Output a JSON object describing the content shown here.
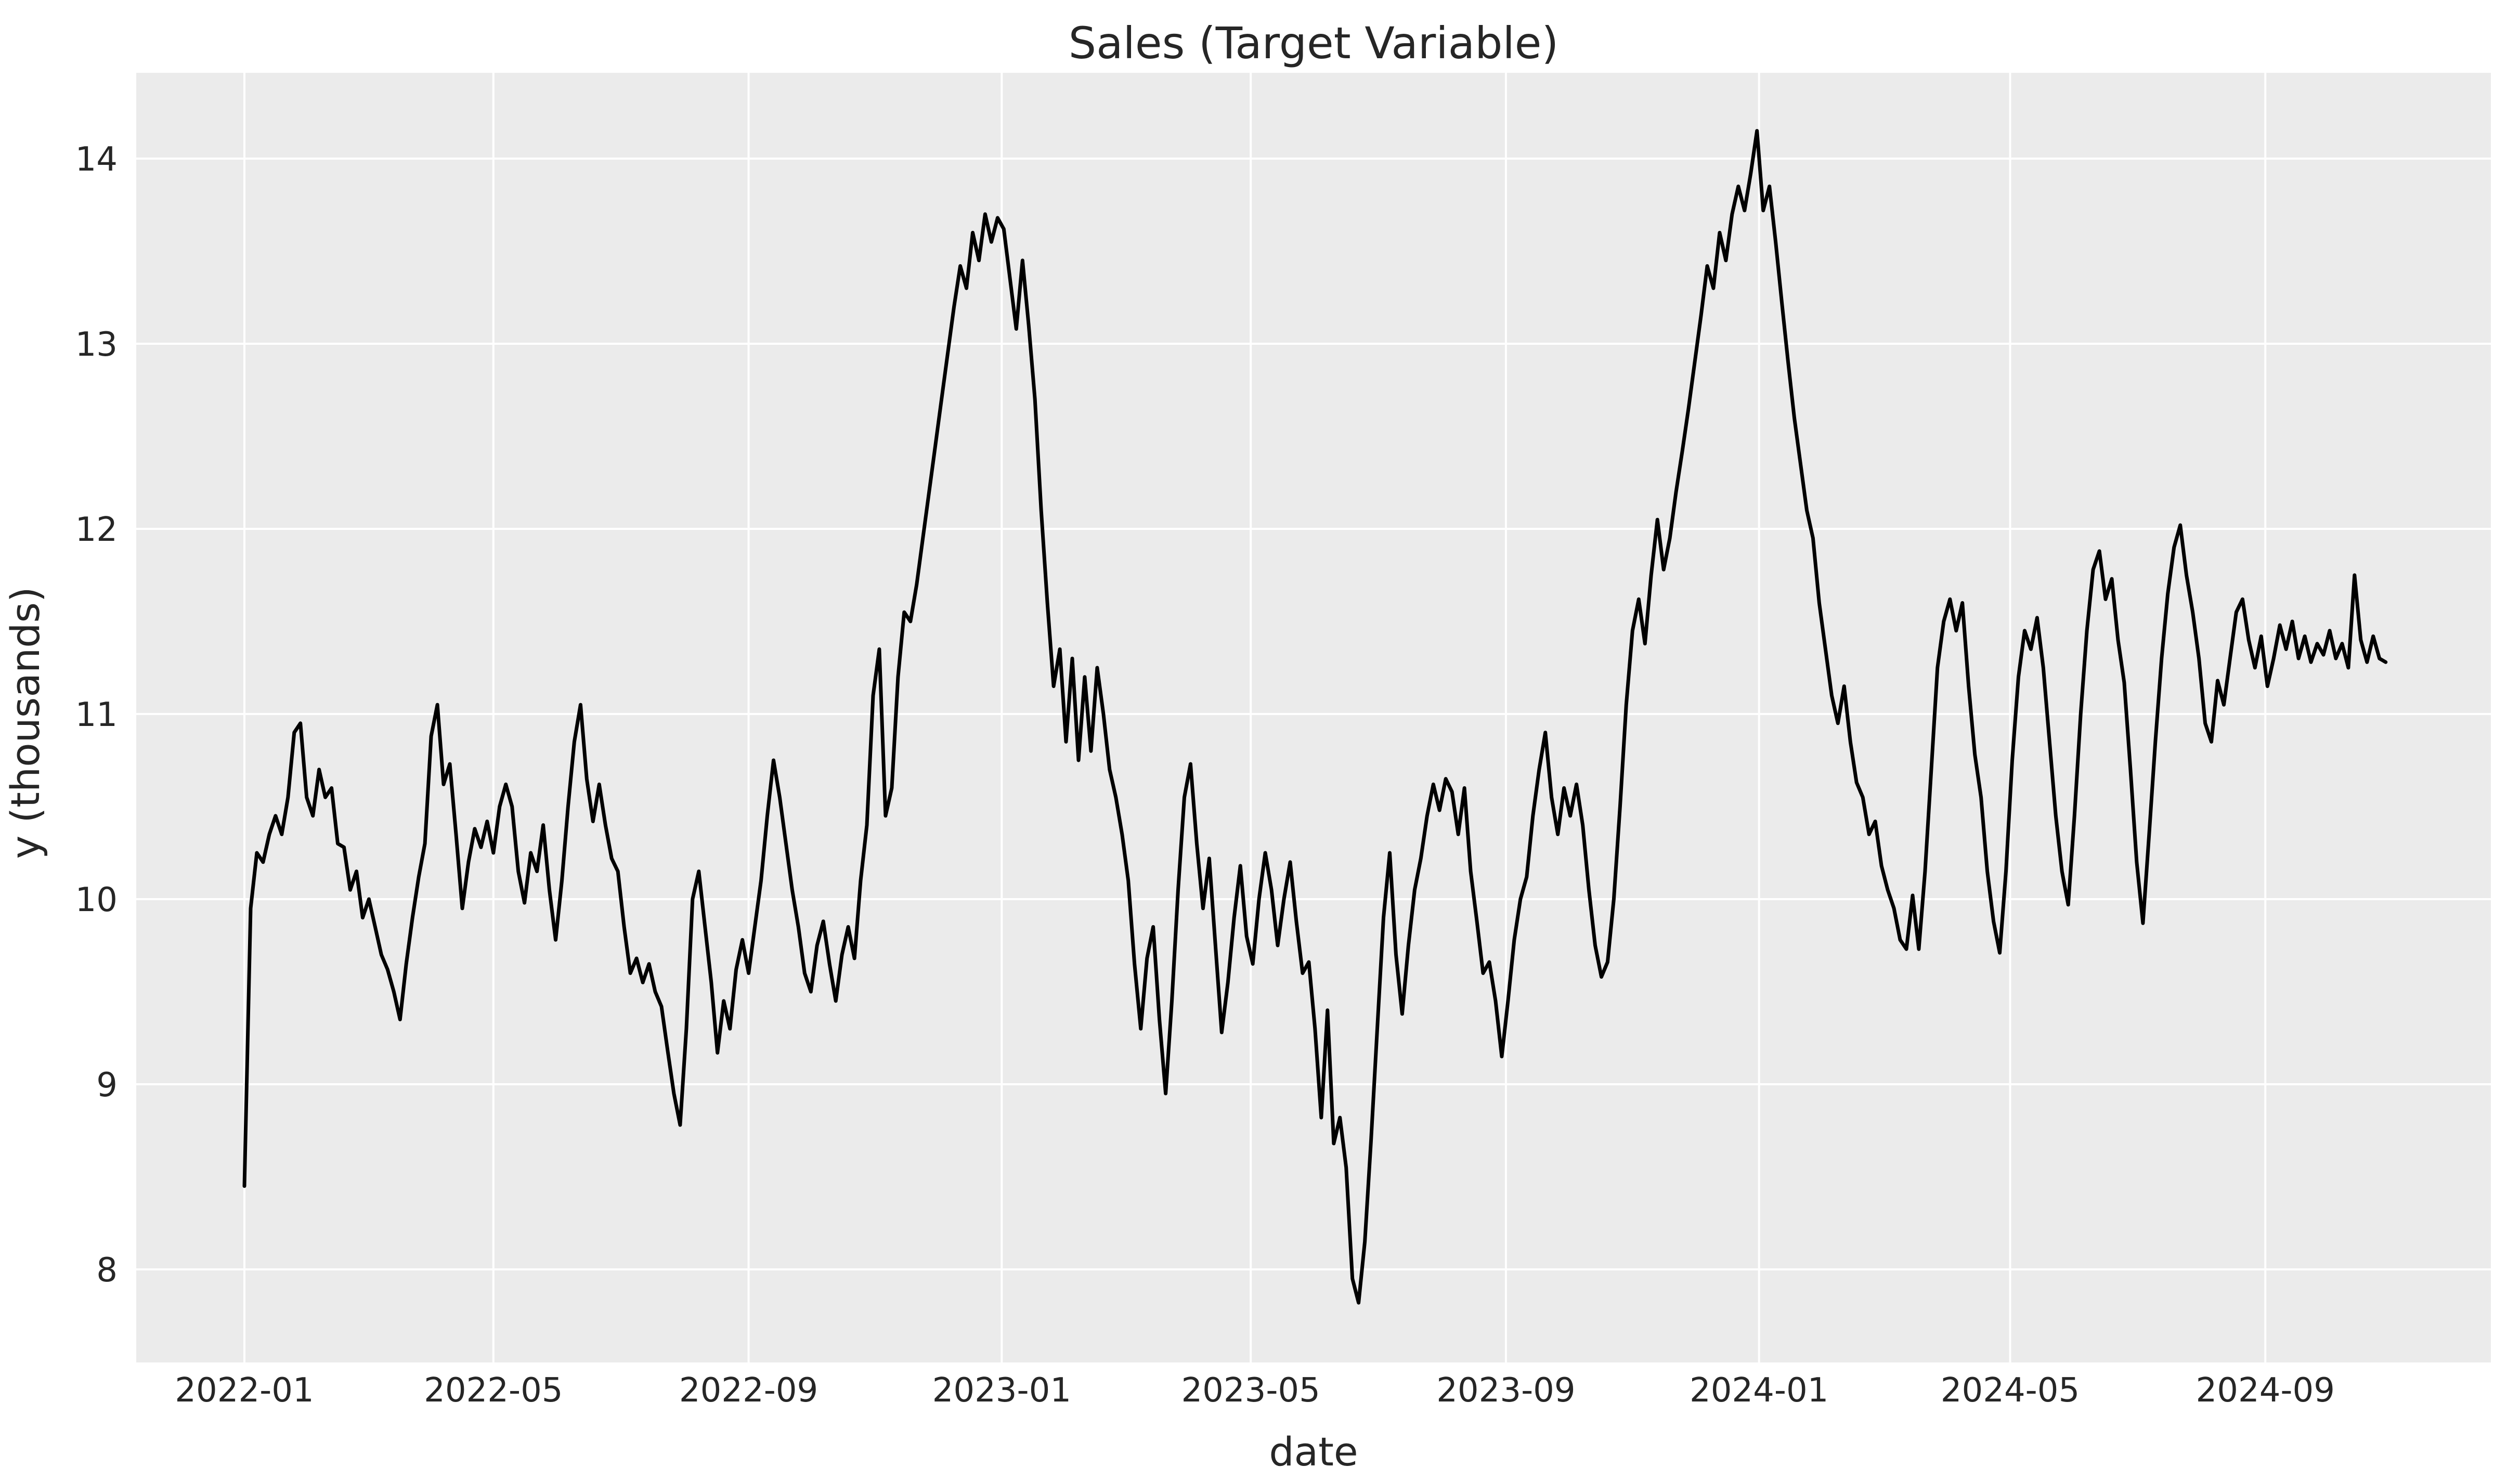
{
  "figure": {
    "background": "#ffffff"
  },
  "chart_data": {
    "type": "line",
    "title": "Sales (Target Variable)",
    "xlabel": "date",
    "ylabel": "y (thousands)",
    "plot_bg": "#ebebeb",
    "grid_color": "#ffffff",
    "text_color": "#262626",
    "grid": true,
    "legend": "none",
    "x_tick_labels": [
      "2022-01",
      "2022-05",
      "2022-09",
      "2023-01",
      "2023-05",
      "2023-09",
      "2024-01",
      "2024-05",
      "2024-09"
    ],
    "y_ticks": [
      8,
      9,
      10,
      11,
      12,
      13,
      14
    ],
    "ylim": [
      7.45,
      14.46
    ],
    "x_start": "2022-01-01",
    "x_end": "2024-10-27",
    "x_step_days": 3,
    "series": [
      {
        "name": "Sales",
        "color": "#000000",
        "line_width": 7,
        "values": [
          8.45,
          9.95,
          10.25,
          10.2,
          10.35,
          10.45,
          10.35,
          10.55,
          10.9,
          10.95,
          10.55,
          10.45,
          10.7,
          10.55,
          10.6,
          10.3,
          10.28,
          10.05,
          10.15,
          9.9,
          10.0,
          9.85,
          9.7,
          9.62,
          9.5,
          9.35,
          9.65,
          9.9,
          10.12,
          10.3,
          10.88,
          11.05,
          10.62,
          10.73,
          10.35,
          9.95,
          10.2,
          10.38,
          10.28,
          10.42,
          10.25,
          10.5,
          10.62,
          10.5,
          10.15,
          9.98,
          10.25,
          10.15,
          10.4,
          10.05,
          9.78,
          10.1,
          10.5,
          10.85,
          11.05,
          10.65,
          10.42,
          10.62,
          10.4,
          10.22,
          10.15,
          9.85,
          9.6,
          9.68,
          9.55,
          9.65,
          9.5,
          9.42,
          9.18,
          8.95,
          8.78,
          9.3,
          10.0,
          10.15,
          9.85,
          9.55,
          9.17,
          9.45,
          9.3,
          9.62,
          9.78,
          9.6,
          9.85,
          10.1,
          10.45,
          10.75,
          10.55,
          10.3,
          10.05,
          9.85,
          9.6,
          9.5,
          9.75,
          9.88,
          9.65,
          9.45,
          9.7,
          9.85,
          9.68,
          10.1,
          10.4,
          11.1,
          11.35,
          10.45,
          10.6,
          11.2,
          11.55,
          11.5,
          11.7,
          11.95,
          12.2,
          12.45,
          12.7,
          12.95,
          13.2,
          13.42,
          13.3,
          13.6,
          13.45,
          13.7,
          13.55,
          13.68,
          13.62,
          13.35,
          13.08,
          13.45,
          13.1,
          12.7,
          12.1,
          11.6,
          11.15,
          11.35,
          10.85,
          11.3,
          10.75,
          11.2,
          10.8,
          11.25,
          11.0,
          10.7,
          10.55,
          10.35,
          10.1,
          9.65,
          9.3,
          9.68,
          9.85,
          9.35,
          8.95,
          9.45,
          10.05,
          10.55,
          10.73,
          10.3,
          9.95,
          10.22,
          9.75,
          9.28,
          9.55,
          9.9,
          10.18,
          9.8,
          9.65,
          10.0,
          10.25,
          10.05,
          9.75,
          10.0,
          10.2,
          9.88,
          9.6,
          9.66,
          9.3,
          8.82,
          9.4,
          8.68,
          8.82,
          8.55,
          7.95,
          7.82,
          8.15,
          8.7,
          9.3,
          9.9,
          10.25,
          9.7,
          9.38,
          9.75,
          10.05,
          10.22,
          10.45,
          10.62,
          10.48,
          10.65,
          10.58,
          10.35,
          10.6,
          10.15,
          9.88,
          9.6,
          9.66,
          9.45,
          9.15,
          9.45,
          9.78,
          10.0,
          10.12,
          10.45,
          10.7,
          10.9,
          10.55,
          10.35,
          10.6,
          10.45,
          10.62,
          10.4,
          10.05,
          9.75,
          9.58,
          9.66,
          10.0,
          10.5,
          11.05,
          11.45,
          11.62,
          11.38,
          11.75,
          12.05,
          11.78,
          11.95,
          12.2,
          12.42,
          12.65,
          12.9,
          13.15,
          13.42,
          13.3,
          13.6,
          13.45,
          13.7,
          13.85,
          13.72,
          13.92,
          14.15,
          13.72,
          13.85,
          13.55,
          13.22,
          12.9,
          12.6,
          12.35,
          12.1,
          11.95,
          11.6,
          11.35,
          11.1,
          10.95,
          11.15,
          10.85,
          10.63,
          10.55,
          10.35,
          10.42,
          10.18,
          10.05,
          9.95,
          9.78,
          9.73,
          10.02,
          9.73,
          10.15,
          10.7,
          11.25,
          11.5,
          11.62,
          11.45,
          11.6,
          11.15,
          10.78,
          10.55,
          10.15,
          9.88,
          9.71,
          10.15,
          10.75,
          11.2,
          11.45,
          11.35,
          11.52,
          11.25,
          10.85,
          10.45,
          10.15,
          9.97,
          10.45,
          11.0,
          11.45,
          11.78,
          11.88,
          11.62,
          11.73,
          11.4,
          11.17,
          10.7,
          10.2,
          9.87,
          10.35,
          10.85,
          11.3,
          11.65,
          11.9,
          12.02,
          11.75,
          11.55,
          11.3,
          10.95,
          10.85,
          11.18,
          11.05,
          11.3,
          11.55,
          11.62,
          11.4,
          11.25,
          11.42,
          11.15,
          11.3,
          11.48,
          11.35,
          11.5,
          11.3,
          11.42,
          11.28,
          11.38,
          11.32,
          11.45,
          11.3,
          11.38,
          11.25,
          11.75,
          11.4,
          11.28,
          11.42,
          11.3,
          11.28
        ]
      }
    ]
  }
}
